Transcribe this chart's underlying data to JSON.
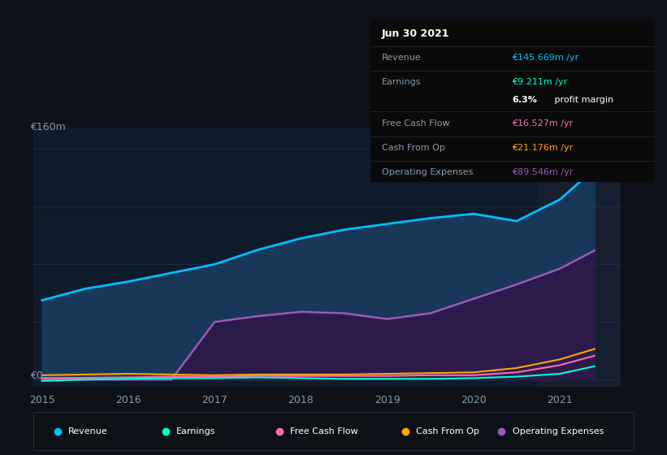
{
  "background_color": "#0d1117",
  "plot_bg_color": "#0d1b2a",
  "grid_color": "#1e3050",
  "ylabel_text": "€160m",
  "y0_text": "€0",
  "years": [
    2015,
    2015.5,
    2016,
    2016.5,
    2017,
    2017.5,
    2018,
    2018.5,
    2019,
    2019.5,
    2020,
    2020.5,
    2021,
    2021.4
  ],
  "revenue": [
    55,
    63,
    68,
    74,
    80,
    90,
    98,
    104,
    108,
    112,
    115,
    110,
    125,
    146
  ],
  "earnings": [
    -1,
    0,
    0.5,
    1,
    1,
    1.5,
    1,
    0.5,
    0.5,
    0.5,
    1,
    2,
    4,
    9.2
  ],
  "free_cash_flow": [
    1,
    1.2,
    1.5,
    2,
    2,
    2.5,
    2.5,
    2.5,
    2.5,
    3,
    3,
    5,
    10,
    16.5
  ],
  "cash_from_op": [
    3,
    3.5,
    4,
    3.5,
    3,
    3.5,
    3.5,
    3.5,
    4,
    4.5,
    5,
    8,
    14,
    21.2
  ],
  "operating_expenses": [
    0,
    0,
    0,
    0,
    40,
    44,
    47,
    46,
    42,
    46,
    56,
    66,
    77,
    89.5
  ],
  "revenue_color": "#00bfff",
  "earnings_color": "#00ffcc",
  "free_cash_flow_color": "#ff69b4",
  "cash_from_op_color": "#ffa500",
  "operating_expenses_color": "#9b59b6",
  "revenue_fill": "#1a3a5c",
  "op_exp_fill": "#2d1a4a",
  "highlight_x_start": 2020.75,
  "tooltip": {
    "date": "Jun 30 2021",
    "revenue_label": "Revenue",
    "revenue_value": "€145.669m /yr",
    "earnings_label": "Earnings",
    "earnings_value": "€9.211m /yr",
    "margin_pct": "6.3%",
    "margin_rest": " profit margin",
    "fcf_label": "Free Cash Flow",
    "fcf_value": "€16.527m /yr",
    "cfop_label": "Cash From Op",
    "cfop_value": "€21.176m /yr",
    "opex_label": "Operating Expenses",
    "opex_value": "€89.546m /yr"
  },
  "legend": [
    {
      "label": "Revenue",
      "color": "#00bfff"
    },
    {
      "label": "Earnings",
      "color": "#00ffcc"
    },
    {
      "label": "Free Cash Flow",
      "color": "#ff69b4"
    },
    {
      "label": "Cash From Op",
      "color": "#ffa500"
    },
    {
      "label": "Operating Expenses",
      "color": "#9b59b6"
    }
  ],
  "xlim": [
    2014.9,
    2021.7
  ],
  "ylim": [
    -5,
    175
  ],
  "xticks": [
    2015,
    2016,
    2017,
    2018,
    2019,
    2020,
    2021
  ],
  "separator_color": "#2a2a3a",
  "tooltip_bg": "#0a0a0a",
  "tooltip_label_color": "#8899aa",
  "tooltip_title_color": "#ffffff"
}
